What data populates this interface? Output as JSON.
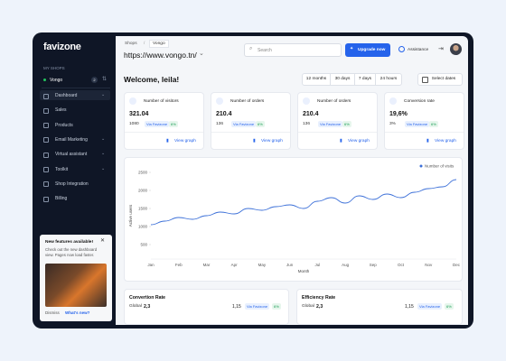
{
  "sidebar": {
    "logo": "favizone",
    "shops_label": "MY SHOPS",
    "shop": "Vongo",
    "shop_badge": "2",
    "nav": [
      "Dashboard",
      "Sales",
      "Products",
      "Email Marketing",
      "Virtual assistant",
      "Toolkit",
      "Shop Integration",
      "Billing"
    ],
    "feature": {
      "title": "New features available!",
      "text": "Check out the new dashboard view. Pages now load faster.",
      "dismiss": "Dismiss",
      "link": "What's new?"
    }
  },
  "header": {
    "breadcrumb": [
      "Shops",
      "Vongo"
    ],
    "url": "https://www.vongo.tn/",
    "search": "Search",
    "upgrade": "Upgrade now",
    "assistance": "Assistance"
  },
  "welcome": "Welcome, leila!",
  "ranges": [
    "12 months",
    "30 days",
    "7 days",
    "24 hours"
  ],
  "select_dates": "Select dates",
  "cards": [
    {
      "title": "Number of visitors",
      "value": "321.04",
      "count": "1080",
      "source": "Via Favizone",
      "change": "6%",
      "link": "View graph"
    },
    {
      "title": "Number of orders",
      "value": "210.4",
      "count": "136",
      "source": "Via Favizone",
      "change": "6%",
      "link": "View graph"
    },
    {
      "title": "Number of orders",
      "value": "210.4",
      "count": "136",
      "source": "Via Favizone",
      "change": "6%",
      "link": "View graph"
    },
    {
      "title": "Conversion rate",
      "value": "19,6%",
      "count": "3%",
      "source": "Via Favizone",
      "change": "6%",
      "link": "View graph"
    }
  ],
  "chart": {
    "type": "line",
    "legend": "Number of visits",
    "y_label": "Active users",
    "x_label": "Month",
    "color": "#3b6fd8",
    "categories": [
      "Jan",
      null,
      "Feb",
      null,
      "Mar",
      null,
      "Apr",
      null,
      "May",
      null,
      "Jun",
      null,
      "Jul",
      null,
      "Aug",
      null,
      "Sep",
      null,
      "Oct",
      null,
      "Nov",
      null,
      "Dec"
    ],
    "values": [
      1050,
      1150,
      1250,
      1200,
      1300,
      1400,
      1350,
      1500,
      1450,
      1550,
      1600,
      1500,
      1700,
      1800,
      1650,
      1850,
      1750,
      1900,
      1800,
      1950,
      2050,
      2100,
      2300
    ],
    "ylim": [
      0,
      2600
    ],
    "yticks": [
      500,
      1000,
      1500,
      2000,
      2500
    ]
  },
  "bottom_cards": [
    {
      "title": "Convertion Rate",
      "label": "Global",
      "value": "2,3",
      "count": "1,15",
      "source": "Via Favizone",
      "change": "6%"
    },
    {
      "title": "Efficiency Rate",
      "label": "Global",
      "value": "2,3",
      "count": "1,15",
      "source": "Via Favizone",
      "change": "6%"
    }
  ]
}
